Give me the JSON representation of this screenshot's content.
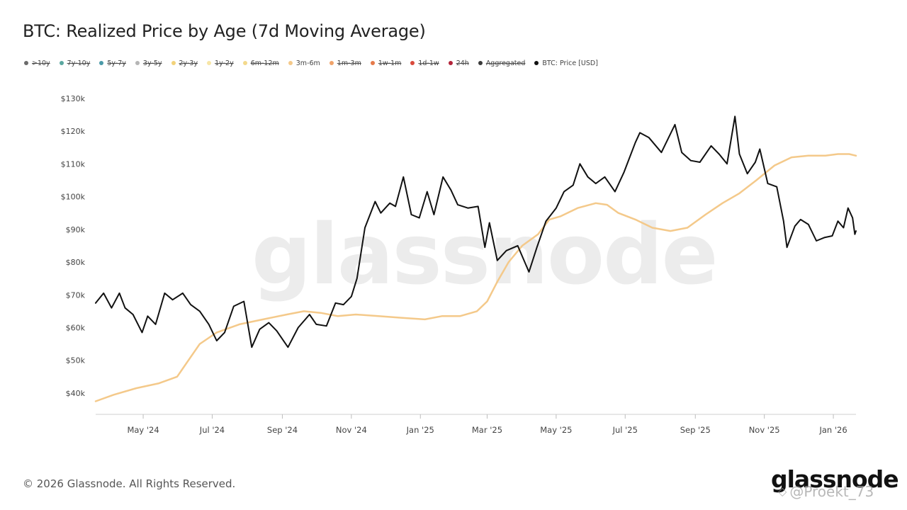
{
  "title": "BTC: Realized Price by Age (7d Moving Average)",
  "legend": [
    {
      "label": ">10y",
      "color": "#6b6b6b",
      "active": false
    },
    {
      "label": "7y-10y",
      "color": "#5aa7a0",
      "active": false
    },
    {
      "label": "5y-7y",
      "color": "#4a9aa8",
      "active": false
    },
    {
      "label": "3y-5y",
      "color": "#b5b5b5",
      "active": false
    },
    {
      "label": "2y-3y",
      "color": "#f2d27a",
      "active": false
    },
    {
      "label": "1y-2y",
      "color": "#f7e6a6",
      "active": false
    },
    {
      "label": "6m-12m",
      "color": "#f3d98c",
      "active": false
    },
    {
      "label": "3m-6m",
      "color": "#f4c98a",
      "active": true
    },
    {
      "label": "1m-3m",
      "color": "#f0a36a",
      "active": false
    },
    {
      "label": "1w-1m",
      "color": "#e57a4a",
      "active": false
    },
    {
      "label": "1d-1w",
      "color": "#d94a3c",
      "active": false
    },
    {
      "label": "24h",
      "color": "#b3243a",
      "active": false
    },
    {
      "label": "Aggregated",
      "color": "#3a3a3a",
      "active": false
    },
    {
      "label": "BTC: Price [USD]",
      "color": "#111111",
      "active": true
    }
  ],
  "watermark": "glassnode",
  "footer": {
    "copyright": "© 2026 Glassnode. All Rights Reserved.",
    "logo": "glassnode",
    "overlay": "@Proekt_73"
  },
  "chart_data": {
    "type": "line",
    "y_tick_labels": [
      "$40k",
      "$50k",
      "$60k",
      "$70k",
      "$80k",
      "$90k",
      "$100k",
      "$110k",
      "$120k",
      "$130k"
    ],
    "y_tick_values": [
      40000,
      50000,
      60000,
      70000,
      80000,
      90000,
      100000,
      110000,
      120000,
      130000
    ],
    "ylim": [
      33500,
      133000
    ],
    "xlim": [
      "2024-03-20",
      "2026-01-21"
    ],
    "x_ticks": [
      {
        "date": "2024-05-01",
        "label": "May '24"
      },
      {
        "date": "2024-07-01",
        "label": "Jul '24"
      },
      {
        "date": "2024-09-01",
        "label": "Sep '24"
      },
      {
        "date": "2024-11-01",
        "label": "Nov '24"
      },
      {
        "date": "2025-01-01",
        "label": "Jan '25"
      },
      {
        "date": "2025-03-01",
        "label": "Mar '25"
      },
      {
        "date": "2025-05-01",
        "label": "May '25"
      },
      {
        "date": "2025-07-01",
        "label": "Jul '25"
      },
      {
        "date": "2025-09-01",
        "label": "Sep '25"
      },
      {
        "date": "2025-11-01",
        "label": "Nov '25"
      },
      {
        "date": "2026-01-01",
        "label": "Jan '26"
      }
    ],
    "series": [
      {
        "name": "3m-6m",
        "color": "#f4c98a",
        "points": [
          [
            "2024-03-20",
            37500
          ],
          [
            "2024-04-05",
            39500
          ],
          [
            "2024-04-25",
            41500
          ],
          [
            "2024-05-15",
            43000
          ],
          [
            "2024-05-31",
            45000
          ],
          [
            "2024-06-10",
            50000
          ],
          [
            "2024-06-20",
            55000
          ],
          [
            "2024-07-05",
            58500
          ],
          [
            "2024-07-25",
            61000
          ],
          [
            "2024-08-15",
            62500
          ],
          [
            "2024-09-05",
            64000
          ],
          [
            "2024-09-20",
            65000
          ],
          [
            "2024-10-05",
            64500
          ],
          [
            "2024-10-20",
            63500
          ],
          [
            "2024-11-05",
            64000
          ],
          [
            "2024-11-25",
            63500
          ],
          [
            "2024-12-15",
            63000
          ],
          [
            "2025-01-05",
            62500
          ],
          [
            "2025-01-20",
            63500
          ],
          [
            "2025-02-05",
            63500
          ],
          [
            "2025-02-20",
            65000
          ],
          [
            "2025-03-01",
            68000
          ],
          [
            "2025-03-10",
            74000
          ],
          [
            "2025-03-20",
            80000
          ],
          [
            "2025-04-01",
            85000
          ],
          [
            "2025-04-15",
            88500
          ],
          [
            "2025-04-25",
            93000
          ],
          [
            "2025-05-05",
            94000
          ],
          [
            "2025-05-20",
            96500
          ],
          [
            "2025-06-05",
            98000
          ],
          [
            "2025-06-15",
            97500
          ],
          [
            "2025-06-25",
            95000
          ],
          [
            "2025-07-10",
            93000
          ],
          [
            "2025-07-25",
            90500
          ],
          [
            "2025-08-10",
            89500
          ],
          [
            "2025-08-25",
            90500
          ],
          [
            "2025-09-10",
            94500
          ],
          [
            "2025-09-25",
            98000
          ],
          [
            "2025-10-10",
            101000
          ],
          [
            "2025-10-25",
            105000
          ],
          [
            "2025-11-10",
            109500
          ],
          [
            "2025-11-25",
            112000
          ],
          [
            "2025-12-10",
            112500
          ],
          [
            "2025-12-25",
            112500
          ],
          [
            "2026-01-05",
            113000
          ],
          [
            "2026-01-15",
            113000
          ],
          [
            "2026-01-21",
            112500
          ]
        ]
      },
      {
        "name": "BTC: Price [USD]",
        "color": "#111111",
        "points": [
          [
            "2024-03-20",
            67500
          ],
          [
            "2024-03-27",
            70500
          ],
          [
            "2024-04-03",
            66000
          ],
          [
            "2024-04-10",
            70500
          ],
          [
            "2024-04-15",
            66000
          ],
          [
            "2024-04-22",
            64000
          ],
          [
            "2024-04-30",
            58500
          ],
          [
            "2024-05-05",
            63500
          ],
          [
            "2024-05-12",
            61000
          ],
          [
            "2024-05-20",
            70500
          ],
          [
            "2024-05-27",
            68500
          ],
          [
            "2024-06-05",
            70500
          ],
          [
            "2024-06-12",
            67000
          ],
          [
            "2024-06-20",
            65000
          ],
          [
            "2024-06-28",
            61000
          ],
          [
            "2024-07-05",
            56000
          ],
          [
            "2024-07-12",
            58500
          ],
          [
            "2024-07-20",
            66500
          ],
          [
            "2024-07-29",
            68000
          ],
          [
            "2024-08-05",
            54000
          ],
          [
            "2024-08-12",
            59500
          ],
          [
            "2024-08-20",
            61500
          ],
          [
            "2024-08-27",
            59000
          ],
          [
            "2024-09-06",
            54000
          ],
          [
            "2024-09-15",
            60000
          ],
          [
            "2024-09-25",
            64000
          ],
          [
            "2024-10-01",
            61000
          ],
          [
            "2024-10-10",
            60500
          ],
          [
            "2024-10-18",
            67500
          ],
          [
            "2024-10-25",
            67000
          ],
          [
            "2024-11-01",
            69500
          ],
          [
            "2024-11-06",
            75000
          ],
          [
            "2024-11-13",
            90500
          ],
          [
            "2024-11-22",
            98500
          ],
          [
            "2024-11-27",
            95000
          ],
          [
            "2024-12-05",
            98000
          ],
          [
            "2024-12-10",
            97000
          ],
          [
            "2024-12-17",
            106000
          ],
          [
            "2024-12-24",
            94500
          ],
          [
            "2024-12-31",
            93500
          ],
          [
            "2025-01-07",
            101500
          ],
          [
            "2025-01-13",
            94500
          ],
          [
            "2025-01-21",
            106000
          ],
          [
            "2025-01-28",
            102000
          ],
          [
            "2025-02-03",
            97500
          ],
          [
            "2025-02-12",
            96500
          ],
          [
            "2025-02-21",
            97000
          ],
          [
            "2025-02-27",
            84500
          ],
          [
            "2025-03-03",
            92000
          ],
          [
            "2025-03-10",
            80500
          ],
          [
            "2025-03-18",
            83500
          ],
          [
            "2025-03-28",
            85000
          ],
          [
            "2025-04-07",
            77000
          ],
          [
            "2025-04-14",
            84500
          ],
          [
            "2025-04-22",
            92500
          ],
          [
            "2025-05-01",
            96500
          ],
          [
            "2025-05-08",
            101500
          ],
          [
            "2025-05-16",
            103500
          ],
          [
            "2025-05-22",
            110000
          ],
          [
            "2025-05-29",
            106000
          ],
          [
            "2025-06-05",
            104000
          ],
          [
            "2025-06-13",
            106000
          ],
          [
            "2025-06-22",
            101500
          ],
          [
            "2025-06-30",
            107500
          ],
          [
            "2025-07-10",
            116500
          ],
          [
            "2025-07-14",
            119500
          ],
          [
            "2025-07-22",
            118000
          ],
          [
            "2025-08-02",
            113500
          ],
          [
            "2025-08-14",
            122000
          ],
          [
            "2025-08-20",
            113500
          ],
          [
            "2025-08-28",
            111000
          ],
          [
            "2025-09-05",
            110500
          ],
          [
            "2025-09-15",
            115500
          ],
          [
            "2025-09-22",
            113000
          ],
          [
            "2025-09-29",
            110000
          ],
          [
            "2025-10-06",
            124500
          ],
          [
            "2025-10-10",
            113000
          ],
          [
            "2025-10-17",
            107000
          ],
          [
            "2025-10-24",
            110500
          ],
          [
            "2025-10-28",
            114500
          ],
          [
            "2025-11-04",
            104000
          ],
          [
            "2025-11-12",
            103000
          ],
          [
            "2025-11-18",
            92500
          ],
          [
            "2025-11-21",
            84500
          ],
          [
            "2025-11-28",
            91000
          ],
          [
            "2025-12-03",
            93000
          ],
          [
            "2025-12-10",
            91500
          ],
          [
            "2025-12-17",
            86500
          ],
          [
            "2025-12-24",
            87500
          ],
          [
            "2025-12-31",
            88000
          ],
          [
            "2026-01-05",
            92500
          ],
          [
            "2026-01-10",
            90500
          ],
          [
            "2026-01-14",
            96500
          ],
          [
            "2026-01-18",
            93500
          ],
          [
            "2026-01-20",
            88500
          ],
          [
            "2026-01-21",
            89500
          ]
        ]
      }
    ]
  }
}
